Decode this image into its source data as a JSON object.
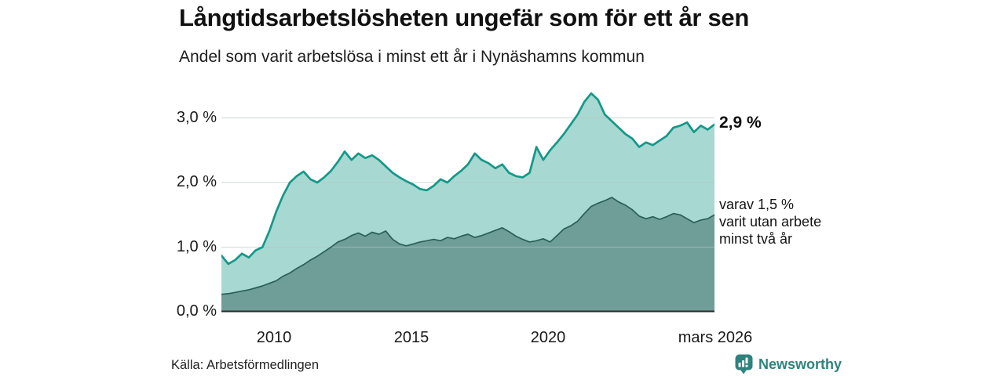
{
  "chart_data": {
    "type": "area",
    "title": "Långtidsarbetslösheten ungefär som för ett år sen",
    "subtitle": "Andel som varit arbetslösa i minst ett år i Nynäshamns kommun",
    "source": "Källa: Arbetsförmedlingen",
    "legend_position": "right-annotations",
    "grid": true,
    "x_axis": {
      "range": [
        2008.25,
        2026.25
      ],
      "tick_labels": [
        "2010",
        "2015",
        "2020",
        "mars 2026"
      ],
      "tick_values": [
        2010,
        2015,
        2020,
        2026.25
      ]
    },
    "y_axis": {
      "range": [
        0,
        3.5
      ],
      "unit": "%",
      "tick_labels": [
        "3,0 %",
        "2,0 %",
        "1,0 %",
        "0,0 %"
      ],
      "tick_values": [
        3,
        2,
        1,
        0
      ],
      "gridlines": [
        1,
        2,
        3
      ]
    },
    "x": [
      2008.25,
      2008.5,
      2008.75,
      2009.0,
      2009.25,
      2009.5,
      2009.75,
      2010.0,
      2010.25,
      2010.5,
      2010.75,
      2011.0,
      2011.25,
      2011.5,
      2011.75,
      2012.0,
      2012.25,
      2012.5,
      2012.75,
      2013.0,
      2013.25,
      2013.5,
      2013.75,
      2014.0,
      2014.25,
      2014.5,
      2014.75,
      2015.0,
      2015.25,
      2015.5,
      2015.75,
      2016.0,
      2016.25,
      2016.5,
      2016.75,
      2017.0,
      2017.25,
      2017.5,
      2017.75,
      2018.0,
      2018.25,
      2018.5,
      2018.75,
      2019.0,
      2019.25,
      2019.5,
      2019.75,
      2020.0,
      2020.25,
      2020.5,
      2020.75,
      2021.0,
      2021.25,
      2021.5,
      2021.75,
      2022.0,
      2022.25,
      2022.5,
      2022.75,
      2023.0,
      2023.25,
      2023.5,
      2023.75,
      2024.0,
      2024.25,
      2024.5,
      2024.75,
      2025.0,
      2025.25,
      2025.5,
      2025.75,
      2026.0,
      2026.25
    ],
    "series": [
      {
        "name": "Andel arbetslösa minst ett år",
        "color": "#149889",
        "fill": "#a8d8d2",
        "latest_value": 2.9,
        "values": [
          0.87,
          0.74,
          0.8,
          0.9,
          0.84,
          0.95,
          1.0,
          1.25,
          1.55,
          1.8,
          2.0,
          2.1,
          2.17,
          2.05,
          2.0,
          2.08,
          2.18,
          2.32,
          2.48,
          2.35,
          2.45,
          2.38,
          2.42,
          2.35,
          2.25,
          2.15,
          2.08,
          2.02,
          1.97,
          1.9,
          1.88,
          1.95,
          2.05,
          2.0,
          2.1,
          2.18,
          2.28,
          2.45,
          2.35,
          2.3,
          2.22,
          2.28,
          2.15,
          2.1,
          2.08,
          2.15,
          2.55,
          2.35,
          2.5,
          2.62,
          2.75,
          2.9,
          3.05,
          3.25,
          3.38,
          3.28,
          3.05,
          2.95,
          2.85,
          2.75,
          2.68,
          2.55,
          2.62,
          2.58,
          2.65,
          2.72,
          2.85,
          2.88,
          2.93,
          2.78,
          2.88,
          2.82,
          2.9
        ]
      },
      {
        "name": "Andel utan arbete minst två år",
        "color": "#2a5f57",
        "fill": "#6f9e98",
        "latest_value": 1.5,
        "values": [
          0.27,
          0.28,
          0.3,
          0.32,
          0.34,
          0.37,
          0.4,
          0.44,
          0.48,
          0.55,
          0.6,
          0.67,
          0.73,
          0.8,
          0.86,
          0.93,
          1.0,
          1.08,
          1.12,
          1.18,
          1.22,
          1.17,
          1.23,
          1.2,
          1.25,
          1.12,
          1.05,
          1.02,
          1.05,
          1.08,
          1.1,
          1.12,
          1.1,
          1.15,
          1.13,
          1.17,
          1.2,
          1.15,
          1.18,
          1.22,
          1.26,
          1.3,
          1.24,
          1.17,
          1.12,
          1.08,
          1.1,
          1.13,
          1.08,
          1.18,
          1.28,
          1.33,
          1.4,
          1.52,
          1.63,
          1.68,
          1.72,
          1.77,
          1.7,
          1.65,
          1.58,
          1.48,
          1.44,
          1.47,
          1.43,
          1.47,
          1.52,
          1.5,
          1.44,
          1.38,
          1.42,
          1.44,
          1.5
        ]
      }
    ],
    "annotations": {
      "latest_total": "2,9 %",
      "latest_two_years_lines": [
        "varav 1,5 %",
        "varit utan arbete",
        "minst två år"
      ]
    }
  },
  "branding": {
    "name": "Newsworthy",
    "color": "#2f837e"
  }
}
